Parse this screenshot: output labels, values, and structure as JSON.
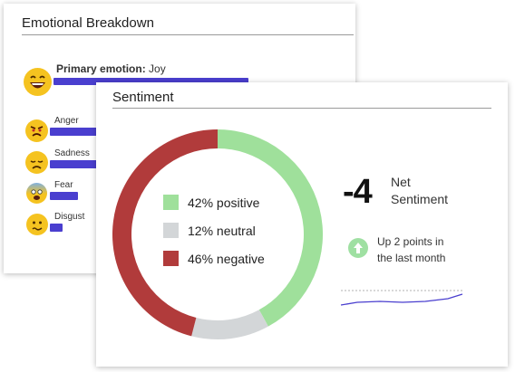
{
  "emotional_breakdown": {
    "title": "Emotional Breakdown",
    "primary_label": "Primary emotion:",
    "primary_value": "Joy",
    "emotions": [
      {
        "label": "Anger",
        "icon": "angry-face-icon"
      },
      {
        "label": "Sadness",
        "icon": "sad-face-icon"
      },
      {
        "label": "Fear",
        "icon": "fearful-face-icon"
      },
      {
        "label": "Disgust",
        "icon": "disgusted-face-icon"
      }
    ],
    "bar_color": "#4a3fcf"
  },
  "sentiment": {
    "title": "Sentiment",
    "net_value": "-4",
    "net_label_line1": "Net",
    "net_label_line2": "Sentiment",
    "change_line1": "Up 2 points in",
    "change_line2": "the last month",
    "legend": [
      {
        "label": "42% positive",
        "color": "#9fe09b"
      },
      {
        "label": "12% neutral",
        "color": "#d3d6d8"
      },
      {
        "label": "46% negative",
        "color": "#b13b3b"
      }
    ]
  },
  "chart_data": {
    "type": "pie",
    "categories": [
      "positive",
      "neutral",
      "negative"
    ],
    "values": [
      42,
      12,
      46
    ],
    "colors": [
      "#9fe09b",
      "#d3d6d8",
      "#b13b3b"
    ],
    "donut": true
  }
}
